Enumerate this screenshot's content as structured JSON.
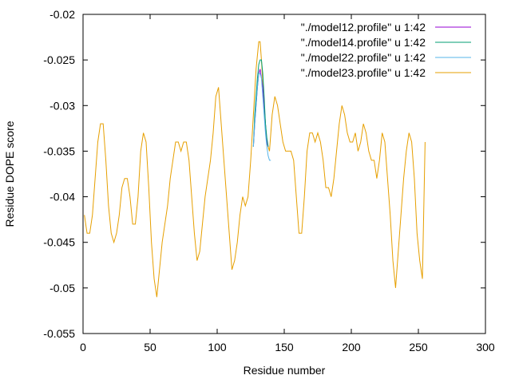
{
  "chart_data": {
    "type": "line",
    "title": "",
    "xlabel": "Residue number",
    "ylabel": "Residue DOPE score",
    "xlim": [
      0,
      300
    ],
    "ylim": [
      -0.055,
      -0.02
    ],
    "xticks": [
      0,
      50,
      100,
      150,
      200,
      250,
      300
    ],
    "yticks": [
      -0.055,
      -0.05,
      -0.045,
      -0.04,
      -0.035,
      -0.03,
      -0.025,
      -0.02
    ],
    "xtick_labels": [
      "0",
      "50",
      "100",
      "150",
      "200",
      "250",
      "300"
    ],
    "ytick_labels": [
      "-0.055",
      "-0.05",
      "-0.045",
      "-0.04",
      "-0.035",
      "-0.03",
      "-0.025",
      "-0.02"
    ],
    "grid": false,
    "legend_position": "top-right",
    "series": [
      {
        "name": "\"./model12.profile\" u 1:42",
        "color": "#9400d3",
        "x": [
          127,
          128,
          129,
          130,
          131,
          132,
          133,
          134,
          135,
          136,
          137,
          138
        ],
        "y": [
          -0.0345,
          -0.032,
          -0.03,
          -0.028,
          -0.0265,
          -0.026,
          -0.027,
          -0.028,
          -0.03,
          -0.032,
          -0.034,
          -0.0345
        ]
      },
      {
        "name": "\"./model14.profile\" u 1:42",
        "color": "#009e73",
        "x": [
          127,
          128,
          129,
          130,
          131,
          132,
          133,
          134,
          135,
          136,
          137,
          138
        ],
        "y": [
          -0.0345,
          -0.031,
          -0.029,
          -0.027,
          -0.0255,
          -0.025,
          -0.025,
          -0.0265,
          -0.029,
          -0.032,
          -0.0335,
          -0.0345
        ]
      },
      {
        "name": "\"./model22.profile\" u 1:42",
        "color": "#56b4e9",
        "x": [
          127,
          128,
          129,
          130,
          131,
          132,
          133,
          134,
          135,
          136,
          137,
          138,
          139,
          140
        ],
        "y": [
          -0.0345,
          -0.032,
          -0.03,
          -0.028,
          -0.0265,
          -0.0265,
          -0.027,
          -0.029,
          -0.031,
          -0.033,
          -0.0345,
          -0.0355,
          -0.036,
          -0.036
        ]
      },
      {
        "name": "\"./model23.profile\" u 1:42",
        "color": "#e69f00",
        "x": [
          1,
          3,
          5,
          7,
          9,
          11,
          13,
          15,
          17,
          19,
          21,
          23,
          25,
          27,
          29,
          31,
          33,
          35,
          37,
          39,
          41,
          43,
          45,
          47,
          49,
          51,
          53,
          55,
          57,
          59,
          61,
          63,
          65,
          67,
          69,
          71,
          73,
          75,
          77,
          79,
          81,
          83,
          85,
          87,
          89,
          91,
          93,
          95,
          97,
          99,
          101,
          103,
          105,
          107,
          109,
          111,
          113,
          115,
          117,
          119,
          121,
          123,
          125,
          127,
          129,
          131,
          132,
          133,
          135,
          137,
          139,
          141,
          143,
          145,
          147,
          149,
          151,
          153,
          155,
          157,
          159,
          161,
          163,
          165,
          167,
          169,
          171,
          173,
          175,
          177,
          179,
          181,
          183,
          185,
          187,
          189,
          191,
          193,
          195,
          197,
          199,
          201,
          203,
          205,
          207,
          209,
          211,
          213,
          215,
          217,
          219,
          221,
          223,
          225,
          227,
          229,
          231,
          233,
          235,
          237,
          239,
          241,
          243,
          245,
          247,
          249,
          251,
          253,
          255
        ],
        "y": [
          -0.042,
          -0.044,
          -0.044,
          -0.042,
          -0.038,
          -0.034,
          -0.032,
          -0.032,
          -0.036,
          -0.041,
          -0.044,
          -0.045,
          -0.044,
          -0.042,
          -0.039,
          -0.038,
          -0.038,
          -0.04,
          -0.043,
          -0.043,
          -0.04,
          -0.035,
          -0.033,
          -0.034,
          -0.039,
          -0.045,
          -0.049,
          -0.051,
          -0.048,
          -0.045,
          -0.043,
          -0.041,
          -0.038,
          -0.036,
          -0.034,
          -0.034,
          -0.035,
          -0.034,
          -0.034,
          -0.036,
          -0.04,
          -0.044,
          -0.047,
          -0.046,
          -0.043,
          -0.04,
          -0.038,
          -0.036,
          -0.033,
          -0.029,
          -0.028,
          -0.032,
          -0.036,
          -0.04,
          -0.044,
          -0.048,
          -0.047,
          -0.045,
          -0.042,
          -0.04,
          -0.041,
          -0.04,
          -0.036,
          -0.031,
          -0.026,
          -0.023,
          -0.023,
          -0.025,
          -0.03,
          -0.034,
          -0.035,
          -0.031,
          -0.029,
          -0.03,
          -0.032,
          -0.034,
          -0.035,
          -0.035,
          -0.035,
          -0.036,
          -0.04,
          -0.044,
          -0.044,
          -0.04,
          -0.035,
          -0.033,
          -0.033,
          -0.034,
          -0.033,
          -0.034,
          -0.036,
          -0.039,
          -0.039,
          -0.04,
          -0.038,
          -0.035,
          -0.032,
          -0.03,
          -0.031,
          -0.033,
          -0.034,
          -0.034,
          -0.033,
          -0.035,
          -0.034,
          -0.032,
          -0.033,
          -0.035,
          -0.036,
          -0.036,
          -0.038,
          -0.036,
          -0.033,
          -0.034,
          -0.038,
          -0.042,
          -0.047,
          -0.05,
          -0.046,
          -0.042,
          -0.038,
          -0.035,
          -0.033,
          -0.034,
          -0.038,
          -0.044,
          -0.047,
          -0.049,
          -0.034
        ]
      }
    ]
  }
}
